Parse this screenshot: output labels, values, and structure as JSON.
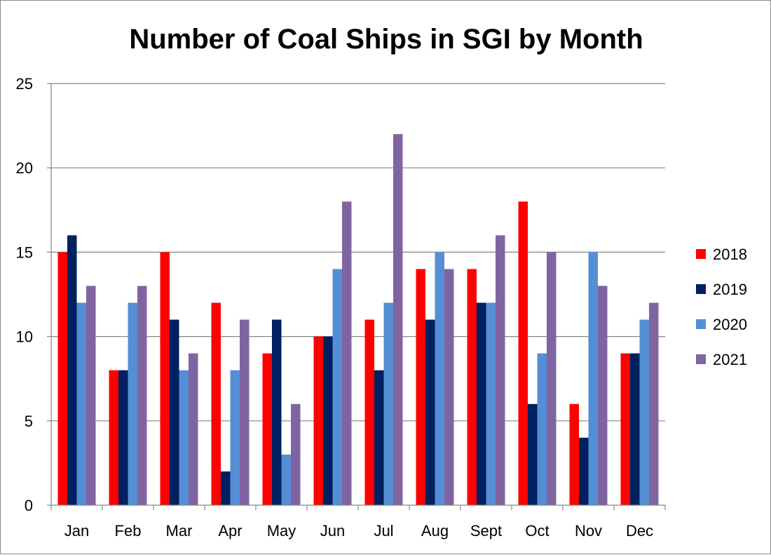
{
  "chart_data": {
    "type": "bar",
    "title": "Number of Coal Ships in SGI by Month",
    "xlabel": "",
    "ylabel": "",
    "ylim": [
      0,
      25
    ],
    "yticks": [
      0,
      5,
      10,
      15,
      20,
      25
    ],
    "grid": true,
    "legend_position": "right",
    "categories": [
      "Jan",
      "Feb",
      "Mar",
      "Apr",
      "May",
      "Jun",
      "Jul",
      "Aug",
      "Sept",
      "Oct",
      "Nov",
      "Dec"
    ],
    "series": [
      {
        "name": "2018",
        "color": "#ff0000",
        "values": [
          15,
          8,
          15,
          12,
          9,
          10,
          11,
          14,
          14,
          18,
          6,
          9
        ]
      },
      {
        "name": "2019",
        "color": "#002060",
        "values": [
          16,
          8,
          11,
          2,
          11,
          10,
          8,
          11,
          12,
          6,
          4,
          9
        ]
      },
      {
        "name": "2020",
        "color": "#558ed5",
        "values": [
          12,
          12,
          8,
          8,
          3,
          14,
          12,
          15,
          12,
          9,
          15,
          11
        ]
      },
      {
        "name": "2021",
        "color": "#8064a2",
        "values": [
          13,
          13,
          9,
          11,
          6,
          18,
          22,
          14,
          16,
          15,
          13,
          12
        ]
      }
    ]
  }
}
